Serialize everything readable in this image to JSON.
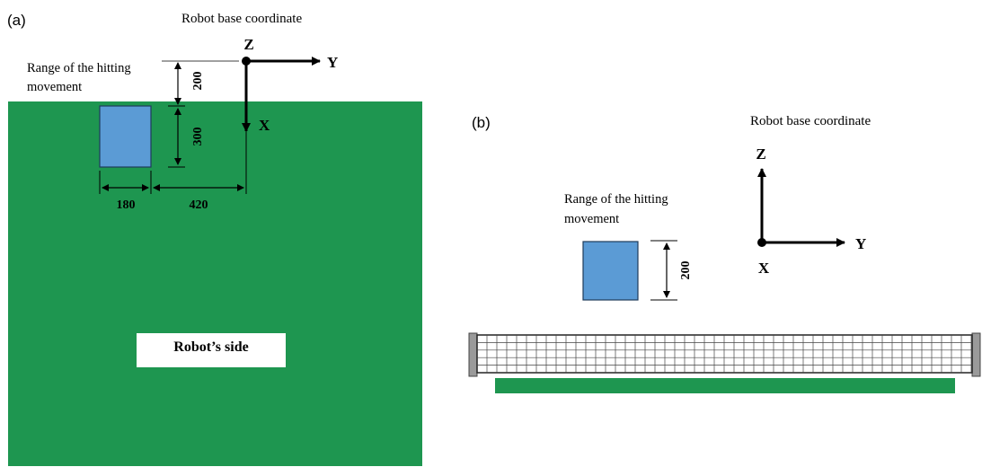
{
  "panel_a": {
    "label": "(a)",
    "frame_title": "Robot base coordinate",
    "axis_z": "Z",
    "axis_y": "Y",
    "axis_x": "X",
    "range_label_line1": "Range of the hitting",
    "range_label_line2": "movement",
    "dim_200": "200",
    "dim_300": "300",
    "dim_180": "180",
    "dim_420": "420",
    "side_label": "Robot’s side"
  },
  "panel_b": {
    "label": "(b)",
    "frame_title": "Robot base coordinate",
    "axis_z": "Z",
    "axis_y": "Y",
    "axis_x": "X",
    "range_label_line1": "Range of the hitting",
    "range_label_line2": "movement",
    "dim_200": "200"
  },
  "colors": {
    "table_green": "#1e9650",
    "range_blue": "#5b9bd5",
    "arrow_black": "#000000",
    "net_gray": "#9a9a9a"
  }
}
